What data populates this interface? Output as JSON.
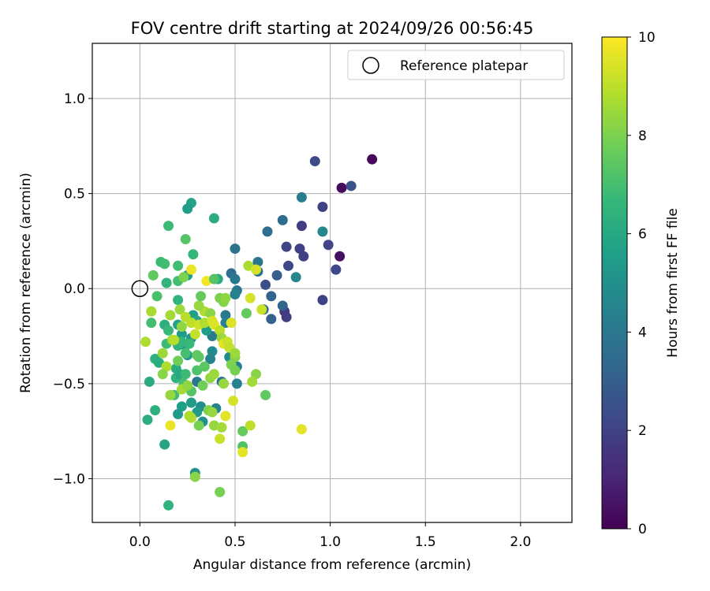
{
  "chart_data": {
    "type": "scatter",
    "title": "FOV centre drift starting at 2024/09/26 00:56:45",
    "xlabel": "Angular distance from reference (arcmin)",
    "ylabel": "Rotation from reference (arcmin)",
    "xlim": [
      -0.25,
      2.27
    ],
    "ylim": [
      -1.23,
      1.29
    ],
    "x_ticks": [
      0.0,
      0.5,
      1.0,
      1.5,
      2.0
    ],
    "x_tick_labels": [
      "0.0",
      "0.5",
      "1.0",
      "1.5",
      "2.0"
    ],
    "y_ticks": [
      -1.0,
      -0.5,
      0.0,
      0.5,
      1.0
    ],
    "y_tick_labels": [
      "−1.0",
      "−0.5",
      "0.0",
      "0.5",
      "1.0"
    ],
    "grid": true,
    "legend": {
      "position": "top-right",
      "entries": [
        "Reference platepar"
      ]
    },
    "reference_point": {
      "x": 0.0,
      "y": 0.0,
      "label": "Reference platepar",
      "marker": "open-circle"
    },
    "colorbar": {
      "label": "Hours from first FF file",
      "min": 0,
      "max": 10,
      "ticks": [
        0,
        2,
        4,
        6,
        8,
        10
      ],
      "tick_labels": [
        "0",
        "2",
        "4",
        "6",
        "8",
        "10"
      ],
      "colormap": "viridis"
    },
    "points": [
      [
        1.22,
        0.68,
        0.2
      ],
      [
        1.06,
        0.53,
        0.3
      ],
      [
        1.05,
        0.17,
        0.4
      ],
      [
        1.11,
        0.54,
        2.6
      ],
      [
        0.92,
        0.67,
        2.3
      ],
      [
        0.96,
        0.43,
        2.0
      ],
      [
        0.99,
        0.23,
        2.1
      ],
      [
        1.03,
        0.1,
        2.2
      ],
      [
        0.96,
        -0.06,
        2.0
      ],
      [
        0.85,
        0.33,
        1.8
      ],
      [
        0.84,
        0.21,
        1.9
      ],
      [
        0.86,
        0.17,
        1.9
      ],
      [
        0.78,
        0.12,
        2.2
      ],
      [
        0.77,
        0.22,
        2.1
      ],
      [
        0.76,
        -0.12,
        1.7
      ],
      [
        0.77,
        -0.15,
        1.8
      ],
      [
        0.75,
        -0.09,
        3.2
      ],
      [
        0.66,
        0.02,
        2.4
      ],
      [
        0.72,
        0.07,
        3.0
      ],
      [
        0.69,
        -0.04,
        3.2
      ],
      [
        0.69,
        -0.16,
        3.1
      ],
      [
        0.65,
        -0.11,
        3.4
      ],
      [
        0.62,
        0.09,
        3.7
      ],
      [
        0.62,
        0.14,
        3.9
      ],
      [
        0.67,
        0.3,
        3.6
      ],
      [
        0.75,
        0.36,
        3.5
      ],
      [
        0.85,
        0.48,
        4.2
      ],
      [
        0.96,
        0.3,
        4.7
      ],
      [
        0.82,
        0.06,
        4.6
      ],
      [
        0.5,
        0.21,
        3.8
      ],
      [
        0.48,
        0.08,
        3.6
      ],
      [
        0.5,
        0.05,
        4.0
      ],
      [
        0.51,
        -0.01,
        3.9
      ],
      [
        0.5,
        -0.03,
        4.4
      ],
      [
        0.45,
        -0.14,
        4.0
      ],
      [
        0.45,
        -0.18,
        4.4
      ],
      [
        0.38,
        -0.25,
        4.2
      ],
      [
        0.37,
        -0.37,
        4.5
      ],
      [
        0.38,
        -0.33,
        4.8
      ],
      [
        0.47,
        -0.36,
        4.8
      ],
      [
        0.51,
        -0.41,
        4.3
      ],
      [
        0.51,
        -0.5,
        4.4
      ],
      [
        0.43,
        -0.49,
        3.9
      ],
      [
        0.3,
        -0.49,
        4.0
      ],
      [
        0.4,
        -0.63,
        4.5
      ],
      [
        0.33,
        -0.7,
        5.0
      ],
      [
        0.32,
        -0.62,
        4.9
      ],
      [
        0.29,
        -0.97,
        5.0
      ],
      [
        0.3,
        -0.65,
        5.4
      ],
      [
        0.27,
        -0.6,
        5.5
      ],
      [
        0.22,
        -0.62,
        5.6
      ],
      [
        0.2,
        -0.66,
        5.4
      ],
      [
        0.25,
        -0.35,
        5.3
      ],
      [
        0.24,
        -0.3,
        5.5
      ],
      [
        0.27,
        -0.26,
        5.2
      ],
      [
        0.22,
        -0.24,
        5.4
      ],
      [
        0.2,
        -0.19,
        5.7
      ],
      [
        0.28,
        -0.14,
        5.6
      ],
      [
        0.3,
        -0.17,
        5.9
      ],
      [
        0.35,
        -0.22,
        5.6
      ],
      [
        0.25,
        0.07,
        5.5
      ],
      [
        0.27,
        0.45,
        5.8
      ],
      [
        0.25,
        0.42,
        5.6
      ],
      [
        0.39,
        0.37,
        6.2
      ],
      [
        0.41,
        0.05,
        6.1
      ],
      [
        0.28,
        0.18,
        6.6
      ],
      [
        0.15,
        0.33,
        6.8
      ],
      [
        0.24,
        0.26,
        7.3
      ],
      [
        0.2,
        0.12,
        6.9
      ],
      [
        0.11,
        0.14,
        6.8
      ],
      [
        0.13,
        0.13,
        6.9
      ],
      [
        0.14,
        0.03,
        6.5
      ],
      [
        0.2,
        0.04,
        7.0
      ],
      [
        0.09,
        -0.04,
        7.1
      ],
      [
        0.2,
        -0.06,
        6.5
      ],
      [
        0.13,
        -0.19,
        6.3
      ],
      [
        0.06,
        -0.18,
        7.0
      ],
      [
        0.15,
        -0.22,
        6.7
      ],
      [
        0.14,
        -0.29,
        6.8
      ],
      [
        0.2,
        -0.3,
        6.5
      ],
      [
        0.22,
        -0.28,
        6.6
      ],
      [
        0.26,
        -0.29,
        6.7
      ],
      [
        0.08,
        -0.37,
        6.4
      ],
      [
        0.1,
        -0.39,
        6.2
      ],
      [
        0.05,
        -0.49,
        6.1
      ],
      [
        0.08,
        -0.64,
        6.3
      ],
      [
        0.04,
        -0.69,
        6.2
      ],
      [
        0.13,
        -0.82,
        5.8
      ],
      [
        0.15,
        -1.14,
        6.4
      ],
      [
        0.19,
        -0.42,
        6.2
      ],
      [
        0.19,
        -0.47,
        6.5
      ],
      [
        0.21,
        -0.45,
        6.0
      ],
      [
        0.24,
        -0.45,
        6.8
      ],
      [
        0.18,
        -0.56,
        6.9
      ],
      [
        0.23,
        -0.5,
        7.0
      ],
      [
        0.27,
        -0.54,
        7.3
      ],
      [
        0.3,
        -0.43,
        7.2
      ],
      [
        0.34,
        -0.41,
        7.4
      ],
      [
        0.31,
        -0.36,
        7.5
      ],
      [
        0.33,
        -0.51,
        7.8
      ],
      [
        0.37,
        -0.47,
        8.3
      ],
      [
        0.39,
        -0.45,
        8.5
      ],
      [
        0.44,
        -0.5,
        8.4
      ],
      [
        0.48,
        -0.4,
        8.0
      ],
      [
        0.5,
        -0.36,
        8.1
      ],
      [
        0.5,
        -0.43,
        7.9
      ],
      [
        0.56,
        -0.13,
        7.6
      ],
      [
        0.61,
        -0.45,
        8.2
      ],
      [
        0.59,
        -0.49,
        8.6
      ],
      [
        0.66,
        -0.56,
        7.5
      ],
      [
        0.54,
        -0.75,
        7.6
      ],
      [
        0.54,
        -0.83,
        7.2
      ],
      [
        0.58,
        -0.72,
        9.0
      ],
      [
        0.54,
        -0.86,
        9.6
      ],
      [
        0.85,
        -0.74,
        9.6
      ],
      [
        0.42,
        -1.07,
        7.9
      ],
      [
        0.29,
        -0.99,
        8.2
      ],
      [
        0.36,
        -0.64,
        8.0
      ],
      [
        0.38,
        -0.65,
        8.4
      ],
      [
        0.39,
        -0.72,
        8.4
      ],
      [
        0.43,
        -0.73,
        8.6
      ],
      [
        0.42,
        -0.79,
        9.2
      ],
      [
        0.45,
        -0.67,
        9.6
      ],
      [
        0.49,
        -0.59,
        9.4
      ],
      [
        0.26,
        -0.67,
        8.7
      ],
      [
        0.27,
        -0.68,
        8.8
      ],
      [
        0.31,
        -0.72,
        7.9
      ],
      [
        0.16,
        -0.72,
        9.7
      ],
      [
        0.16,
        -0.56,
        8.4
      ],
      [
        0.22,
        -0.53,
        8.6
      ],
      [
        0.25,
        -0.51,
        8.3
      ],
      [
        0.12,
        -0.34,
        8.5
      ],
      [
        0.14,
        -0.41,
        8.8
      ],
      [
        0.17,
        -0.27,
        8.5
      ],
      [
        0.18,
        -0.27,
        8.9
      ],
      [
        0.06,
        -0.12,
        8.9
      ],
      [
        0.16,
        -0.14,
        8.6
      ],
      [
        0.21,
        -0.11,
        8.5
      ],
      [
        0.22,
        -0.2,
        8.3
      ],
      [
        0.24,
        -0.15,
        8.9
      ],
      [
        0.27,
        -0.18,
        9.0
      ],
      [
        0.29,
        -0.24,
        9.1
      ],
      [
        0.31,
        -0.19,
        9.3
      ],
      [
        0.34,
        -0.18,
        8.8
      ],
      [
        0.34,
        -0.12,
        8.8
      ],
      [
        0.31,
        -0.09,
        8.4
      ],
      [
        0.37,
        -0.13,
        8.2
      ],
      [
        0.38,
        -0.17,
        9.4
      ],
      [
        0.39,
        -0.19,
        9.5
      ],
      [
        0.42,
        -0.22,
        9.0
      ],
      [
        0.44,
        -0.07,
        8.1
      ],
      [
        0.42,
        -0.05,
        8.0
      ],
      [
        0.45,
        -0.05,
        8.3
      ],
      [
        0.43,
        -0.26,
        8.5
      ],
      [
        0.44,
        -0.29,
        9.6
      ],
      [
        0.46,
        -0.28,
        9.2
      ],
      [
        0.47,
        -0.31,
        9.1
      ],
      [
        0.48,
        -0.18,
        9.5
      ],
      [
        0.5,
        -0.34,
        8.5
      ],
      [
        0.58,
        -0.05,
        9.4
      ],
      [
        0.57,
        0.12,
        8.7
      ],
      [
        0.61,
        0.1,
        9.4
      ],
      [
        0.64,
        -0.11,
        9.2
      ],
      [
        0.27,
        0.1,
        9.7
      ],
      [
        0.35,
        0.04,
        9.8
      ],
      [
        0.39,
        0.05,
        7.3
      ],
      [
        0.23,
        0.06,
        8.0
      ],
      [
        0.07,
        0.07,
        7.5
      ],
      [
        0.06,
        -0.12,
        8.7
      ],
      [
        0.03,
        -0.28,
        8.8
      ],
      [
        0.12,
        -0.45,
        8.2
      ],
      [
        0.2,
        -0.38,
        7.8
      ],
      [
        0.3,
        -0.35,
        7.5
      ],
      [
        0.32,
        -0.04,
        7.6
      ],
      [
        0.24,
        -0.34,
        7.0
      ]
    ]
  }
}
